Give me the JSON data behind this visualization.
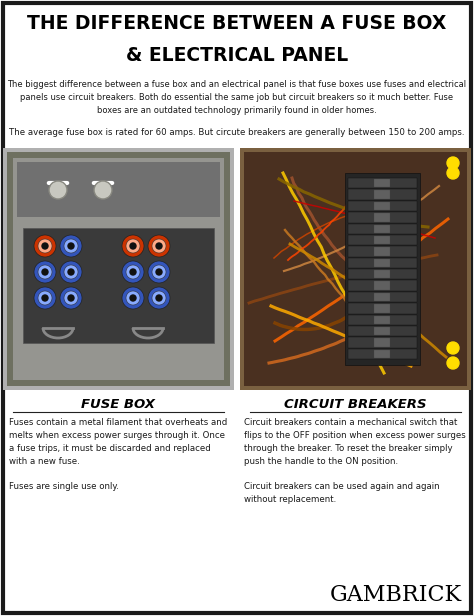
{
  "title_line1": "THE DIFFERENCE BETWEEN A FUSE BOX",
  "title_line2": "& ELECTRICAL PANEL",
  "subtitle1": "The biggest difference between a fuse box and an electrical panel is that fuse boxes use fuses and electrical\npanels use circuit breakers. Both do essential the same job but circuit breakers so it much better. Fuse\nboxes are an outdated technology primarily found in older homes.",
  "subtitle2": "The average fuse box is rated for 60 amps. But circute breakers are generally between 150 to 200 amps.",
  "label_left": "FUSE BOX",
  "label_right": "CIRCUIT BREAKERS",
  "desc_left": "Fuses contain a metal filament that overheats and\nmelts when excess power surges through it. Once\na fuse trips, it must be discarded and replaced\nwith a new fuse.\n\nFuses are single use only.",
  "desc_right": "Circuit breakers contain a mechanical switch that\nflips to the OFF position when excess power surges\nthrough the breaker. To reset the breaker simply\npush the handle to the ON position.\n\nCircuit breakers can be used again and again\nwithout replacement.",
  "brand": "GAMBRICK",
  "bg_color": "#ffffff",
  "border_color": "#1a1a1a",
  "title_color": "#000000",
  "text_color": "#1a1a1a",
  "fuse_box_bg": "#888888",
  "fuse_box_inner": "#6e6e6e",
  "fuse_box_panel": "#9a9a9a",
  "circuit_box_bg": "#5a4030",
  "circuit_box_inner": "#3a2810"
}
